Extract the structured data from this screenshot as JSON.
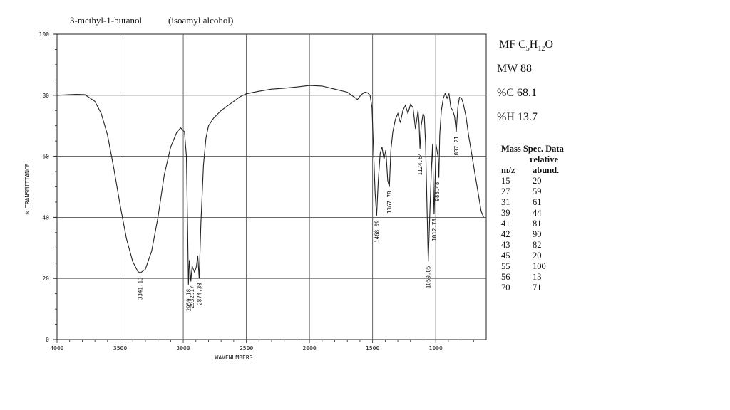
{
  "compound": {
    "title": "3-methyl-1-butanol",
    "synonym": "(isoamyl alcohol)",
    "mf_label": "MF",
    "mf_parts": [
      {
        "t": "C",
        "sub": false
      },
      {
        "t": "5",
        "sub": true
      },
      {
        "t": "H",
        "sub": false
      },
      {
        "t": "12",
        "sub": true
      },
      {
        "t": "O",
        "sub": false
      }
    ],
    "mw": "MW 88",
    "pc": "%C 68.1",
    "ph": "%H 13.7"
  },
  "mass_spec": {
    "title": "Mass Spec. Data",
    "subhead": "relative",
    "col_mz": "m/z",
    "col_abund": "abund.",
    "rows": [
      {
        "mz": "15",
        "abund": "20"
      },
      {
        "mz": "27",
        "abund": "59"
      },
      {
        "mz": "31",
        "abund": "61"
      },
      {
        "mz": "39",
        "abund": "44"
      },
      {
        "mz": "41",
        "abund": "81"
      },
      {
        "mz": "42",
        "abund": "90"
      },
      {
        "mz": "43",
        "abund": "82"
      },
      {
        "mz": "45",
        "abund": "20"
      },
      {
        "mz": "55",
        "abund": "100"
      },
      {
        "mz": "56",
        "abund": "13"
      },
      {
        "mz": "70",
        "abund": "71"
      }
    ]
  },
  "chart_data": {
    "type": "line",
    "xlabel": "WAVENUMBERS",
    "ylabel": "% TRANSMITTANCE",
    "xlim": [
      4000,
      600
    ],
    "ylim": [
      0,
      100
    ],
    "x_reversed": true,
    "grid": true,
    "x_ticks": [
      {
        "value": 4000,
        "label": "4000"
      },
      {
        "value": 3500,
        "label": "3500"
      },
      {
        "value": 3000,
        "label": "3000"
      },
      {
        "value": 2500,
        "label": "2500"
      },
      {
        "value": 2000,
        "label": "2000"
      },
      {
        "value": 1500,
        "label": "1500"
      },
      {
        "value": 1000,
        "label": "1000"
      }
    ],
    "y_ticks": [
      {
        "value": 0,
        "label": "0"
      },
      {
        "value": 20,
        "label": "20"
      },
      {
        "value": 40,
        "label": "40"
      },
      {
        "value": 60,
        "label": "60"
      },
      {
        "value": 80,
        "label": "80"
      },
      {
        "value": 100,
        "label": "100"
      }
    ],
    "series": [
      {
        "points": [
          [
            4000,
            80
          ],
          [
            3850,
            80.3
          ],
          [
            3780,
            80.2
          ],
          [
            3700,
            78
          ],
          [
            3650,
            74
          ],
          [
            3600,
            67
          ],
          [
            3550,
            56
          ],
          [
            3500,
            44
          ],
          [
            3450,
            33
          ],
          [
            3400,
            25.5
          ],
          [
            3360,
            22.3
          ],
          [
            3341,
            21.8
          ],
          [
            3300,
            23
          ],
          [
            3250,
            29
          ],
          [
            3200,
            40
          ],
          [
            3150,
            54
          ],
          [
            3100,
            63
          ],
          [
            3050,
            68
          ],
          [
            3020,
            69.3
          ],
          [
            2990,
            68
          ],
          [
            2975,
            60
          ],
          [
            2965,
            35
          ],
          [
            2959,
            18
          ],
          [
            2952,
            26
          ],
          [
            2940,
            19
          ],
          [
            2930,
            24
          ],
          [
            2910,
            22
          ],
          [
            2895,
            24
          ],
          [
            2885,
            27.5
          ],
          [
            2874,
            20
          ],
          [
            2860,
            38
          ],
          [
            2840,
            57
          ],
          [
            2820,
            66
          ],
          [
            2800,
            70
          ],
          [
            2760,
            72.5
          ],
          [
            2700,
            75
          ],
          [
            2650,
            76.5
          ],
          [
            2600,
            78
          ],
          [
            2550,
            79.5
          ],
          [
            2500,
            80.5
          ],
          [
            2400,
            81.3
          ],
          [
            2300,
            82
          ],
          [
            2200,
            82.3
          ],
          [
            2100,
            82.7
          ],
          [
            2000,
            83.2
          ],
          [
            1900,
            83
          ],
          [
            1800,
            82
          ],
          [
            1700,
            81
          ],
          [
            1650,
            79.5
          ],
          [
            1620,
            78.6
          ],
          [
            1590,
            80.2
          ],
          [
            1560,
            81
          ],
          [
            1540,
            80.8
          ],
          [
            1520,
            80
          ],
          [
            1505,
            76
          ],
          [
            1495,
            65
          ],
          [
            1480,
            48
          ],
          [
            1468,
            40.5
          ],
          [
            1455,
            52
          ],
          [
            1440,
            61
          ],
          [
            1425,
            63
          ],
          [
            1410,
            59
          ],
          [
            1395,
            62
          ],
          [
            1380,
            52
          ],
          [
            1367,
            50
          ],
          [
            1355,
            62
          ],
          [
            1340,
            68
          ],
          [
            1320,
            72
          ],
          [
            1300,
            74
          ],
          [
            1280,
            71
          ],
          [
            1260,
            75
          ],
          [
            1240,
            76.7
          ],
          [
            1220,
            74
          ],
          [
            1200,
            77
          ],
          [
            1180,
            76
          ],
          [
            1160,
            69
          ],
          [
            1150,
            72
          ],
          [
            1140,
            75
          ],
          [
            1132,
            71
          ],
          [
            1124.6,
            62.5
          ],
          [
            1115,
            70
          ],
          [
            1100,
            74
          ],
          [
            1090,
            73
          ],
          [
            1080,
            64
          ],
          [
            1070,
            45
          ],
          [
            1059,
            25.5
          ],
          [
            1048,
            40
          ],
          [
            1035,
            55
          ],
          [
            1025,
            64
          ],
          [
            1018,
            50
          ],
          [
            1012.7,
            41
          ],
          [
            1005,
            52
          ],
          [
            998,
            64
          ],
          [
            990,
            62
          ],
          [
            982,
            60
          ],
          [
            975,
            53
          ],
          [
            968,
            67
          ],
          [
            955,
            75
          ],
          [
            940,
            79
          ],
          [
            925,
            80.6
          ],
          [
            910,
            79
          ],
          [
            895,
            80.5
          ],
          [
            880,
            76
          ],
          [
            865,
            75
          ],
          [
            850,
            73
          ],
          [
            837,
            68
          ],
          [
            825,
            76
          ],
          [
            812,
            79.3
          ],
          [
            795,
            79
          ],
          [
            780,
            77
          ],
          [
            760,
            73
          ],
          [
            740,
            67
          ],
          [
            720,
            62
          ],
          [
            700,
            57
          ],
          [
            680,
            52
          ],
          [
            660,
            47
          ],
          [
            640,
            42
          ],
          [
            620,
            40
          ]
        ]
      }
    ],
    "peak_labels": [
      {
        "x": 3341.13,
        "y": 21.8,
        "label": "3341.13"
      },
      {
        "x": 2959.18,
        "y": 18.0,
        "label": "2959.18"
      },
      {
        "x": 2932.17,
        "y": 19.0,
        "label": "2932.17"
      },
      {
        "x": 2874.3,
        "y": 20.0,
        "label": "2874.30"
      },
      {
        "x": 1468.09,
        "y": 40.5,
        "label": "1468.09"
      },
      {
        "x": 1367.78,
        "y": 50.0,
        "label": "1367.78"
      },
      {
        "x": 1124.64,
        "y": 62.5,
        "label": "1124.64"
      },
      {
        "x": 1059.05,
        "y": 25.5,
        "label": "1059.05"
      },
      {
        "x": 1012.78,
        "y": 41.0,
        "label": "1012.78"
      },
      {
        "x": 988.48,
        "y": 53.0,
        "label": "988.48"
      },
      {
        "x": 837.21,
        "y": 68.0,
        "label": "837.21"
      }
    ]
  }
}
